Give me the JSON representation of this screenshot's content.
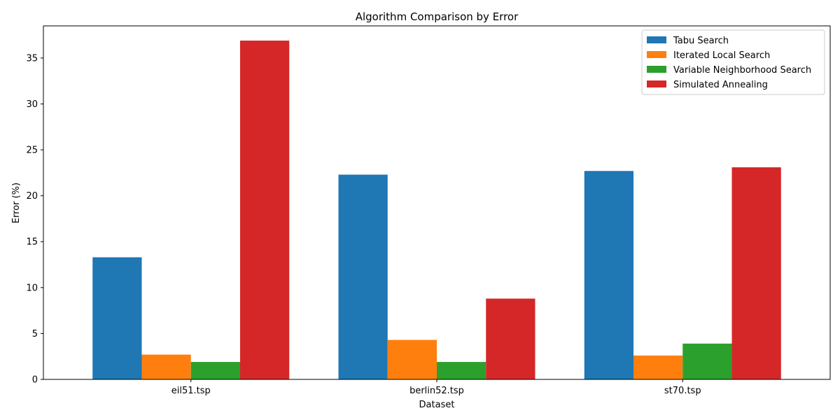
{
  "chart_data": {
    "type": "bar",
    "title": "Algorithm Comparison by Error",
    "xlabel": "Dataset",
    "ylabel": "Error (%)",
    "categories": [
      "eil51.tsp",
      "berlin52.tsp",
      "st70.tsp"
    ],
    "ylim": [
      0,
      38.5
    ],
    "yticks": [
      0,
      5,
      10,
      15,
      20,
      25,
      30,
      35
    ],
    "grid": false,
    "legend_position": "top-right",
    "series": [
      {
        "name": "Tabu Search",
        "color": "#1f77b4",
        "values": [
          13.3,
          22.3,
          22.7
        ]
      },
      {
        "name": "Iterated Local Search",
        "color": "#ff7f0e",
        "values": [
          2.7,
          4.3,
          2.6
        ]
      },
      {
        "name": "Variable Neighborhood Search",
        "color": "#2ca02c",
        "values": [
          1.9,
          1.9,
          3.9
        ]
      },
      {
        "name": "Simulated Annealing",
        "color": "#d62728",
        "values": [
          36.9,
          8.8,
          23.1
        ]
      }
    ]
  }
}
